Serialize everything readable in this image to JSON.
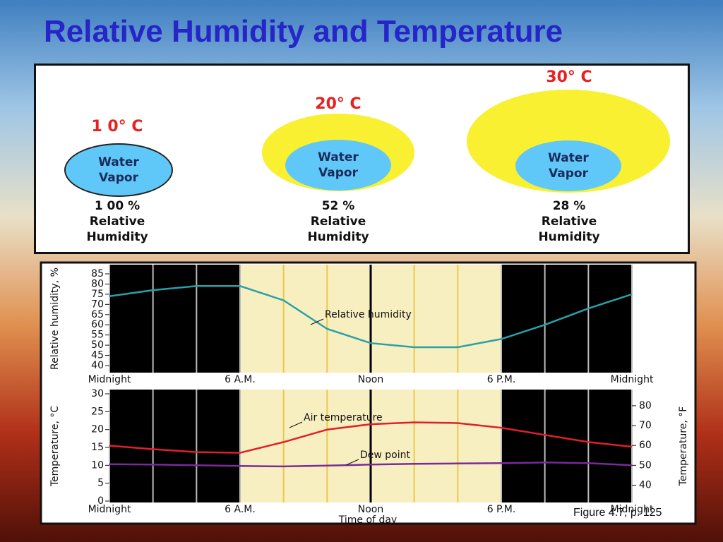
{
  "title": "Relative Humidity and Temperature",
  "diagram": {
    "items": [
      {
        "temp": "1 0° C",
        "label": "Water Vapor",
        "humidity": "1 00 %",
        "caption": "Relative Humidity"
      },
      {
        "temp": "20° C",
        "label": "Water Vapor",
        "humidity": "52 %",
        "caption": "Relative Humidity"
      },
      {
        "temp": "30° C",
        "label": "Water Vapor",
        "humidity": "28 %",
        "caption": "Relative Humidity"
      }
    ]
  },
  "chart_data": [
    {
      "type": "line",
      "ylabel": "Relative humidity, %",
      "x": [
        0,
        2,
        4,
        6,
        8,
        10,
        12,
        14,
        16,
        18,
        20,
        22,
        24
      ],
      "series": [
        {
          "name": "Relative humidity",
          "color": "#2aa0a8",
          "values": [
            74,
            77,
            79,
            79,
            72,
            58,
            51,
            49,
            49,
            53,
            60,
            68,
            75
          ]
        }
      ],
      "xlim": [
        0,
        24
      ],
      "xticks": [
        {
          "value": 0,
          "label": "Midnight"
        },
        {
          "value": 6,
          "label": "6 A.M."
        },
        {
          "value": 12,
          "label": "Noon"
        },
        {
          "value": 18,
          "label": "6 P.M."
        },
        {
          "value": 24,
          "label": "Midnight"
        }
      ],
      "ylim": [
        40,
        85
      ],
      "yticks": [
        40,
        45,
        50,
        55,
        60,
        65,
        70,
        75,
        80,
        85
      ]
    },
    {
      "type": "line",
      "ylabel": "Temperature, °C",
      "y2label": "Temperature, °F",
      "xlabel": "Time of day",
      "x": [
        0,
        2,
        4,
        6,
        8,
        10,
        12,
        14,
        16,
        18,
        20,
        22,
        24
      ],
      "series": [
        {
          "name": "Air temperature",
          "color": "#e0202a",
          "values": [
            15.5,
            14.5,
            13.7,
            13.5,
            16.5,
            20,
            21.5,
            22,
            21.8,
            20.5,
            18.5,
            16.5,
            15.2
          ]
        },
        {
          "name": "Dew point",
          "color": "#7a2a9a",
          "values": [
            10.3,
            10.2,
            10,
            9.8,
            9.7,
            9.9,
            10.2,
            10.4,
            10.5,
            10.6,
            10.8,
            10.6,
            10
          ]
        }
      ],
      "xlim": [
        0,
        24
      ],
      "xticks": [
        {
          "value": 0,
          "label": "Midnight"
        },
        {
          "value": 6,
          "label": "6 A.M."
        },
        {
          "value": 12,
          "label": "Noon"
        },
        {
          "value": 18,
          "label": "6 P.M."
        },
        {
          "value": 24,
          "label": "Midnight"
        }
      ],
      "ylim": [
        0,
        30
      ],
      "yticks": [
        0,
        5,
        10,
        15,
        20,
        25,
        30
      ],
      "y2lim": [
        32,
        86
      ],
      "y2ticks": [
        40,
        50,
        60,
        70,
        80
      ]
    }
  ],
  "figure_caption": "Figure 4.7, p. 125"
}
